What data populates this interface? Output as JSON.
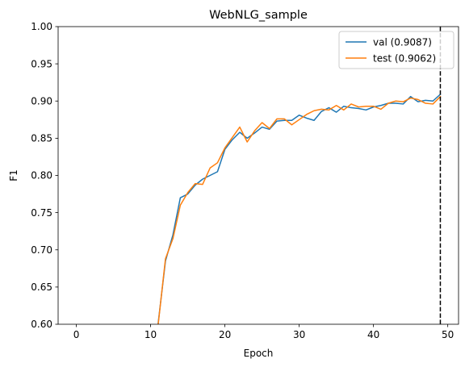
{
  "chart_data": {
    "type": "line",
    "title": "WebNLG_sample",
    "xlabel": "Epoch",
    "ylabel": "F1",
    "xlim": [
      -2.45,
      51.45
    ],
    "ylim": [
      0.6,
      1.0
    ],
    "xticks": [
      0,
      10,
      20,
      30,
      40,
      50
    ],
    "yticks": [
      0.6,
      0.65,
      0.7,
      0.75,
      0.8,
      0.85,
      0.9,
      0.95,
      1.0
    ],
    "xtick_labels": [
      "0",
      "10",
      "20",
      "30",
      "40",
      "50"
    ],
    "ytick_labels": [
      "0.60",
      "0.65",
      "0.70",
      "0.75",
      "0.80",
      "0.85",
      "0.90",
      "0.95",
      "1.00"
    ],
    "grid": false,
    "legend_position": "top-right",
    "vline": {
      "x": 49,
      "style": "dashed",
      "color": "#000000"
    },
    "series": [
      {
        "name": "val (0.9087)",
        "color": "#1f77b4",
        "x": [
          10,
          11,
          12,
          13,
          14,
          15,
          16,
          17,
          18,
          19,
          20,
          21,
          22,
          23,
          24,
          25,
          26,
          27,
          28,
          29,
          30,
          31,
          32,
          33,
          34,
          35,
          36,
          37,
          38,
          39,
          40,
          41,
          42,
          43,
          44,
          45,
          46,
          47,
          48,
          49
        ],
        "values": [
          0.55,
          0.6,
          0.685,
          0.72,
          0.77,
          0.775,
          0.787,
          0.795,
          0.8,
          0.805,
          0.835,
          0.848,
          0.858,
          0.85,
          0.857,
          0.865,
          0.862,
          0.873,
          0.874,
          0.874,
          0.881,
          0.877,
          0.874,
          0.886,
          0.891,
          0.885,
          0.893,
          0.891,
          0.89,
          0.888,
          0.892,
          0.894,
          0.897,
          0.897,
          0.896,
          0.906,
          0.899,
          0.901,
          0.9,
          0.909
        ]
      },
      {
        "name": "test (0.9062)",
        "color": "#ff7f0e",
        "x": [
          10,
          11,
          12,
          13,
          14,
          15,
          16,
          17,
          18,
          19,
          20,
          21,
          22,
          23,
          24,
          25,
          26,
          27,
          28,
          29,
          30,
          31,
          32,
          33,
          34,
          35,
          36,
          37,
          38,
          39,
          40,
          41,
          42,
          43,
          44,
          45,
          46,
          47,
          48,
          49
        ],
        "values": [
          0.55,
          0.598,
          0.688,
          0.715,
          0.76,
          0.777,
          0.789,
          0.788,
          0.81,
          0.817,
          0.837,
          0.851,
          0.865,
          0.845,
          0.86,
          0.871,
          0.863,
          0.876,
          0.876,
          0.868,
          0.875,
          0.882,
          0.887,
          0.889,
          0.888,
          0.894,
          0.888,
          0.896,
          0.892,
          0.893,
          0.893,
          0.889,
          0.897,
          0.9,
          0.899,
          0.904,
          0.902,
          0.897,
          0.896,
          0.906
        ]
      }
    ]
  }
}
